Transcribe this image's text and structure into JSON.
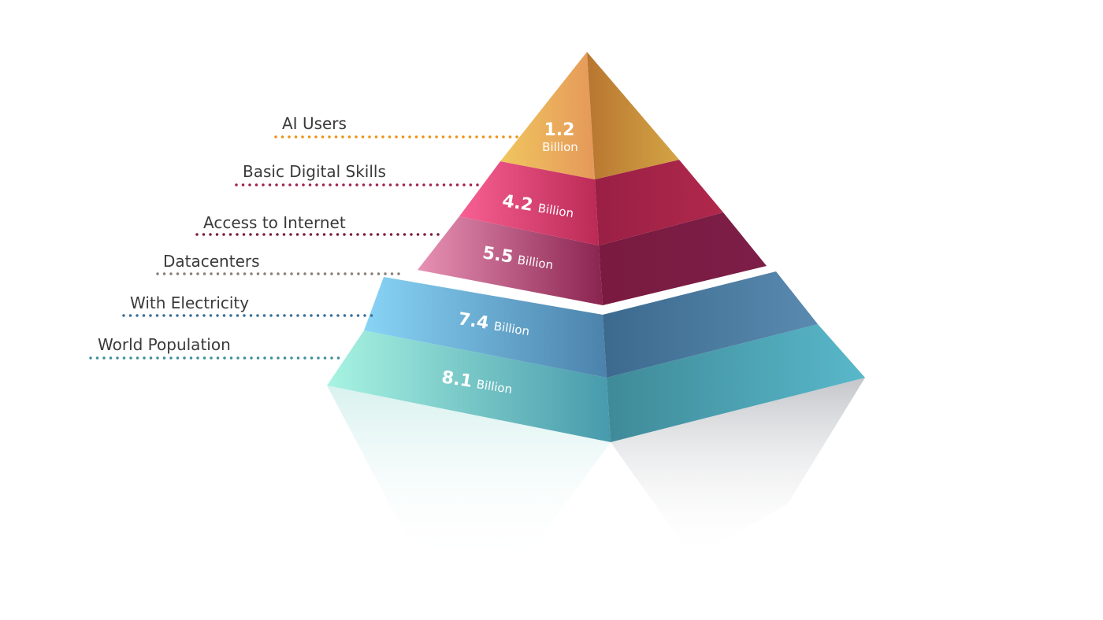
{
  "levels": [
    {
      "label": "AI Users",
      "value": "1.2",
      "unit": "Billion",
      "color": "#e8a04a",
      "line_color": "#f0900f"
    },
    {
      "label": "Basic Digital Skills",
      "value": "4.2",
      "unit": "Billion",
      "color": "#c8305a",
      "line_color": "#9e2150"
    },
    {
      "label": "Access to Internet",
      "value": "5.5",
      "unit": "Billion",
      "color": "#8e2550",
      "line_color": "#7a1d40"
    },
    {
      "label": "Datacenters",
      "color": "#ffffff",
      "line_color": "#8a7f78"
    },
    {
      "label": "With Electricity",
      "value": "7.4",
      "unit": "Billion",
      "color": "#4e8cb8",
      "line_color": "#3a6f96"
    },
    {
      "label": "World Population",
      "value": "8.1",
      "unit": "Billion",
      "color": "#52a9b2",
      "line_color": "#3d8f9a"
    }
  ]
}
